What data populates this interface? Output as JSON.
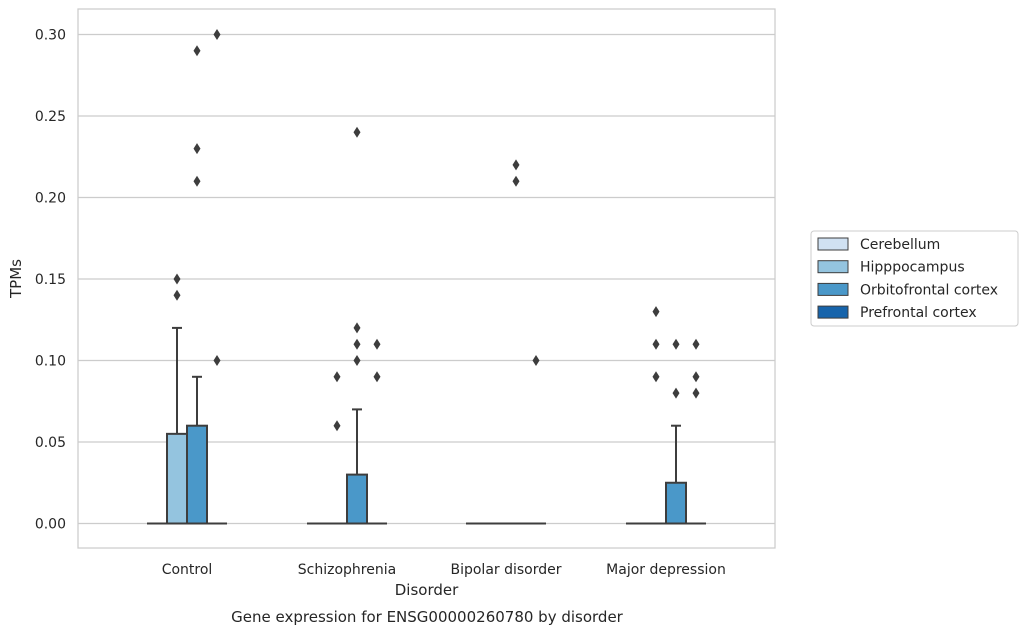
{
  "chart_data": {
    "type": "box",
    "title": "",
    "caption": "Gene expression for ENSG00000260780 by disorder",
    "xlabel": "Disorder",
    "ylabel": "TPMs",
    "ylim": [
      -0.015,
      0.315
    ],
    "yticks": [
      0.0,
      0.05,
      0.1,
      0.15,
      0.2,
      0.25,
      0.3
    ],
    "ytick_labels": [
      "0.00",
      "0.05",
      "0.10",
      "0.15",
      "0.20",
      "0.25",
      "0.30"
    ],
    "grid": true,
    "legend_position": "right",
    "categories": [
      "Control",
      "Schizophrenia",
      "Bipolar disorder",
      "Major depression"
    ],
    "series": [
      {
        "name": "Cerebellum",
        "color": "#d0e1f2",
        "boxes": [
          {
            "q1": 0,
            "median": 0,
            "q3": 0,
            "whisker_low": 0,
            "whisker_high": 0,
            "outliers": []
          },
          {
            "q1": 0,
            "median": 0,
            "q3": 0,
            "whisker_low": 0,
            "whisker_high": 0,
            "outliers": []
          },
          {
            "q1": 0,
            "median": 0,
            "q3": 0,
            "whisker_low": 0,
            "whisker_high": 0,
            "outliers": []
          },
          {
            "q1": 0,
            "median": 0,
            "q3": 0,
            "whisker_low": 0,
            "whisker_high": 0,
            "outliers": []
          }
        ]
      },
      {
        "name": "Hipppocampus",
        "color": "#94c4df",
        "boxes": [
          {
            "q1": 0,
            "median": 0,
            "q3": 0.055,
            "whisker_low": 0,
            "whisker_high": 0.12,
            "outliers": [
              0.14,
              0.15
            ]
          },
          {
            "q1": 0,
            "median": 0,
            "q3": 0,
            "whisker_low": 0,
            "whisker_high": 0,
            "outliers": [
              0.06,
              0.09
            ]
          },
          {
            "q1": 0,
            "median": 0,
            "q3": 0,
            "whisker_low": 0,
            "whisker_high": 0,
            "outliers": []
          },
          {
            "q1": 0,
            "median": 0,
            "q3": 0,
            "whisker_low": 0,
            "whisker_high": 0,
            "outliers": [
              0.09,
              0.11,
              0.13
            ]
          }
        ]
      },
      {
        "name": "Orbitofrontal cortex",
        "color": "#4a98c9",
        "boxes": [
          {
            "q1": 0,
            "median": 0,
            "q3": 0.06,
            "whisker_low": 0,
            "whisker_high": 0.09,
            "outliers": [
              0.21,
              0.23,
              0.29
            ]
          },
          {
            "q1": 0,
            "median": 0,
            "q3": 0.03,
            "whisker_low": 0,
            "whisker_high": 0.07,
            "outliers": [
              0.1,
              0.11,
              0.12,
              0.24
            ]
          },
          {
            "q1": 0,
            "median": 0,
            "q3": 0,
            "whisker_low": 0,
            "whisker_high": 0,
            "outliers": [
              0.21,
              0.22
            ]
          },
          {
            "q1": 0,
            "median": 0,
            "q3": 0.025,
            "whisker_low": 0,
            "whisker_high": 0.06,
            "outliers": [
              0.08,
              0.11
            ]
          }
        ]
      },
      {
        "name": "Prefrontal cortex",
        "color": "#1764ab",
        "boxes": [
          {
            "q1": 0,
            "median": 0,
            "q3": 0,
            "whisker_low": 0,
            "whisker_high": 0,
            "outliers": [
              0.1,
              0.3
            ]
          },
          {
            "q1": 0,
            "median": 0,
            "q3": 0,
            "whisker_low": 0,
            "whisker_high": 0,
            "outliers": [
              0.09,
              0.11
            ]
          },
          {
            "q1": 0,
            "median": 0,
            "q3": 0,
            "whisker_low": 0,
            "whisker_high": 0,
            "outliers": [
              0.1
            ]
          },
          {
            "q1": 0,
            "median": 0,
            "q3": 0,
            "whisker_low": 0,
            "whisker_high": 0,
            "outliers": [
              0.08,
              0.09,
              0.11
            ]
          }
        ]
      }
    ]
  }
}
